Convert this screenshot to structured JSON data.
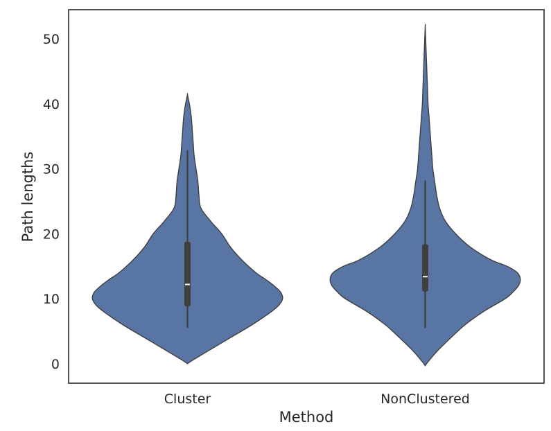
{
  "chart_data": {
    "type": "violin",
    "title": "",
    "xlabel": "Method",
    "ylabel": "Path lengths",
    "categories": [
      "Cluster",
      "NonClustered"
    ],
    "ylim": [
      -3,
      54.5
    ],
    "yticks": [
      0,
      10,
      20,
      30,
      40,
      50
    ],
    "grid": false,
    "legend": "none",
    "colors": {
      "fill": "#5875a4",
      "outline": "#3f3f3f",
      "box": "#3f3f3f",
      "median": "#ffffff"
    },
    "violins": [
      {
        "category": "Cluster",
        "summary": {
          "whisker_low": 5.5,
          "q1": 8.8,
          "median": 12.2,
          "q3": 18.8,
          "whisker_high": 32.9
        },
        "density": [
          [
            0,
            0
          ],
          [
            0.5,
            0.05
          ],
          [
            2,
            0.22
          ],
          [
            4,
            0.45
          ],
          [
            6,
            0.68
          ],
          [
            8,
            0.88
          ],
          [
            9,
            0.96
          ],
          [
            10,
            1.0
          ],
          [
            11,
            0.98
          ],
          [
            12,
            0.91
          ],
          [
            13,
            0.82
          ],
          [
            14,
            0.72
          ],
          [
            16,
            0.57
          ],
          [
            18,
            0.45
          ],
          [
            20,
            0.36
          ],
          [
            22,
            0.24
          ],
          [
            24,
            0.14
          ],
          [
            26,
            0.12
          ],
          [
            28,
            0.11
          ],
          [
            30,
            0.09
          ],
          [
            32,
            0.07
          ],
          [
            34,
            0.06
          ],
          [
            36,
            0.05
          ],
          [
            38,
            0.04
          ],
          [
            40,
            0.02
          ],
          [
            41.4,
            0
          ]
        ]
      },
      {
        "category": "NonClustered",
        "summary": {
          "whisker_low": 5.5,
          "q1": 11.1,
          "median": 13.4,
          "q3": 18.4,
          "whisker_high": 28.2
        },
        "density": [
          [
            -0.3,
            0
          ],
          [
            0.3,
            0.03
          ],
          [
            2,
            0.13
          ],
          [
            4,
            0.27
          ],
          [
            6,
            0.42
          ],
          [
            8,
            0.61
          ],
          [
            10,
            0.84
          ],
          [
            11,
            0.92
          ],
          [
            12,
            0.98
          ],
          [
            13,
            1.0
          ],
          [
            14,
            0.97
          ],
          [
            15,
            0.86
          ],
          [
            16,
            0.69
          ],
          [
            18,
            0.47
          ],
          [
            20,
            0.32
          ],
          [
            22,
            0.21
          ],
          [
            24,
            0.15
          ],
          [
            26,
            0.12
          ],
          [
            28,
            0.1
          ],
          [
            30,
            0.08
          ],
          [
            32,
            0.07
          ],
          [
            34,
            0.06
          ],
          [
            36,
            0.05
          ],
          [
            38,
            0.04
          ],
          [
            40,
            0.03
          ],
          [
            42,
            0.025
          ],
          [
            44,
            0.02
          ],
          [
            46,
            0.015
          ],
          [
            48,
            0.01
          ],
          [
            50,
            0.005
          ],
          [
            52,
            0
          ]
        ]
      }
    ]
  }
}
